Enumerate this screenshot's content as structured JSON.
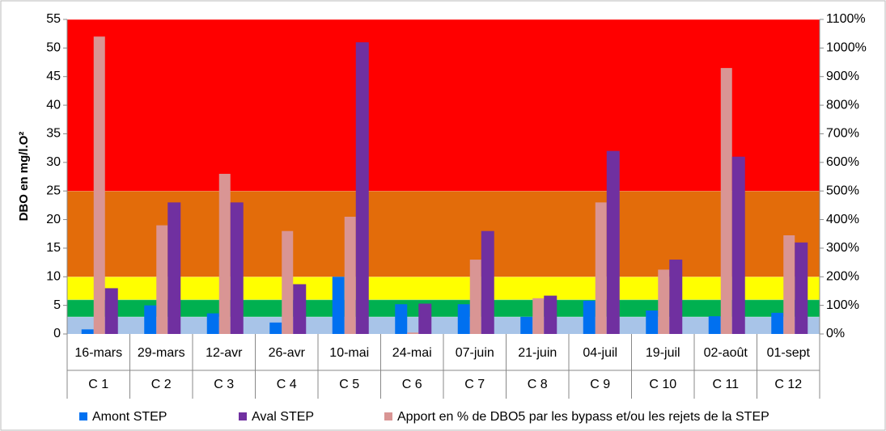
{
  "chart_data": {
    "type": "bar",
    "y_label": "DBO en mg/l.O²",
    "categories": [
      "16-mars",
      "29-mars",
      "12-avr",
      "26-avr",
      "10-mai",
      "24-mai",
      "07-juin",
      "21-juin",
      "04-juil",
      "19-juil",
      "02-août",
      "01-sept"
    ],
    "subcategories": [
      "C 1",
      "C 2",
      "C 3",
      "C 4",
      "C 5",
      "C 6",
      "C 7",
      "C 8",
      "C 9",
      "C 10",
      "C 11",
      "C 12"
    ],
    "series": [
      {
        "name": "Amont STEP",
        "color": "#0070f0",
        "values": [
          0.8,
          5,
          3.6,
          2,
          10,
          5.2,
          5.2,
          3,
          5.8,
          4.1,
          3.1,
          3.7
        ]
      },
      {
        "name": "Aval STEP",
        "color": "#7030a0",
        "values": [
          8,
          23,
          23,
          8.7,
          51,
          5.3,
          18,
          6.7,
          32,
          13,
          31,
          16
        ]
      },
      {
        "name": "Apport en % de DBO5 par les bypass et/ou les rejets de la STEP",
        "color": "#d99594",
        "axis": "y2",
        "values": [
          1040,
          380,
          560,
          360,
          410,
          5,
          260,
          125,
          460,
          225,
          930,
          345
        ]
      }
    ],
    "bands": [
      {
        "value": 3,
        "color": "#a8c4e8"
      },
      {
        "value": 6,
        "color": "#00b050"
      },
      {
        "value": 10,
        "color": "#ffff00"
      },
      {
        "value": 25,
        "color": "#e36c0a"
      },
      {
        "value": 55,
        "color": "#ff0000"
      }
    ],
    "ylim": [
      0,
      55
    ],
    "yticks": [
      0,
      5,
      10,
      15,
      20,
      25,
      30,
      35,
      40,
      45,
      50,
      55
    ],
    "y2lim": [
      0,
      1100
    ],
    "y2ticks": [
      {
        "value": 0,
        "label": "0%"
      },
      {
        "value": 100,
        "label": "100%"
      },
      {
        "value": 200,
        "label": "200%"
      },
      {
        "value": 300,
        "label": "300%"
      },
      {
        "value": 400,
        "label": "400%"
      },
      {
        "value": 500,
        "label": "500%"
      },
      {
        "value": 600,
        "label": "600%"
      },
      {
        "value": 700,
        "label": "700%"
      },
      {
        "value": 800,
        "label": "800%"
      },
      {
        "value": 900,
        "label": "900%"
      },
      {
        "value": 1000,
        "label": "1000%"
      },
      {
        "value": 1100,
        "label": "1100%"
      }
    ]
  }
}
